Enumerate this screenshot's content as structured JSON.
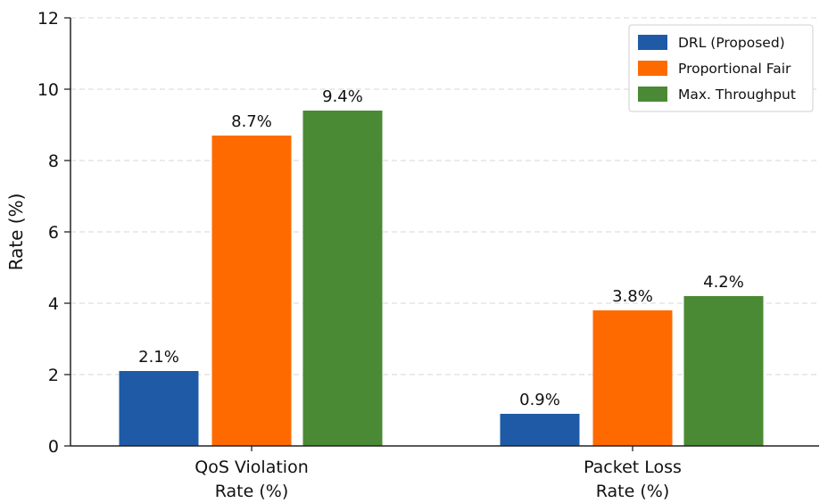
{
  "chart_data": {
    "type": "bar",
    "title": "",
    "ylabel": "Rate (%)",
    "xlabel": "",
    "ylim": [
      0,
      12
    ],
    "yticks": [
      0,
      2,
      4,
      6,
      8,
      10,
      12
    ],
    "grid": "horizontal dashed",
    "legend_position": "top-right",
    "categories": [
      [
        "QoS Violation",
        "Rate (%)"
      ],
      [
        "Packet Loss",
        "Rate (%)"
      ]
    ],
    "series": [
      {
        "name": "DRL (Proposed)",
        "color": "#1f5aa6",
        "values": [
          2.1,
          0.9
        ],
        "labels": [
          "2.1%",
          "0.9%"
        ]
      },
      {
        "name": "Proportional Fair",
        "color": "#ff6a00",
        "values": [
          8.7,
          3.8
        ],
        "labels": [
          "8.7%",
          "3.8%"
        ]
      },
      {
        "name": "Max. Throughput",
        "color": "#4a8a34",
        "values": [
          9.4,
          4.2
        ],
        "labels": [
          "9.4%",
          "4.2%"
        ]
      }
    ]
  }
}
